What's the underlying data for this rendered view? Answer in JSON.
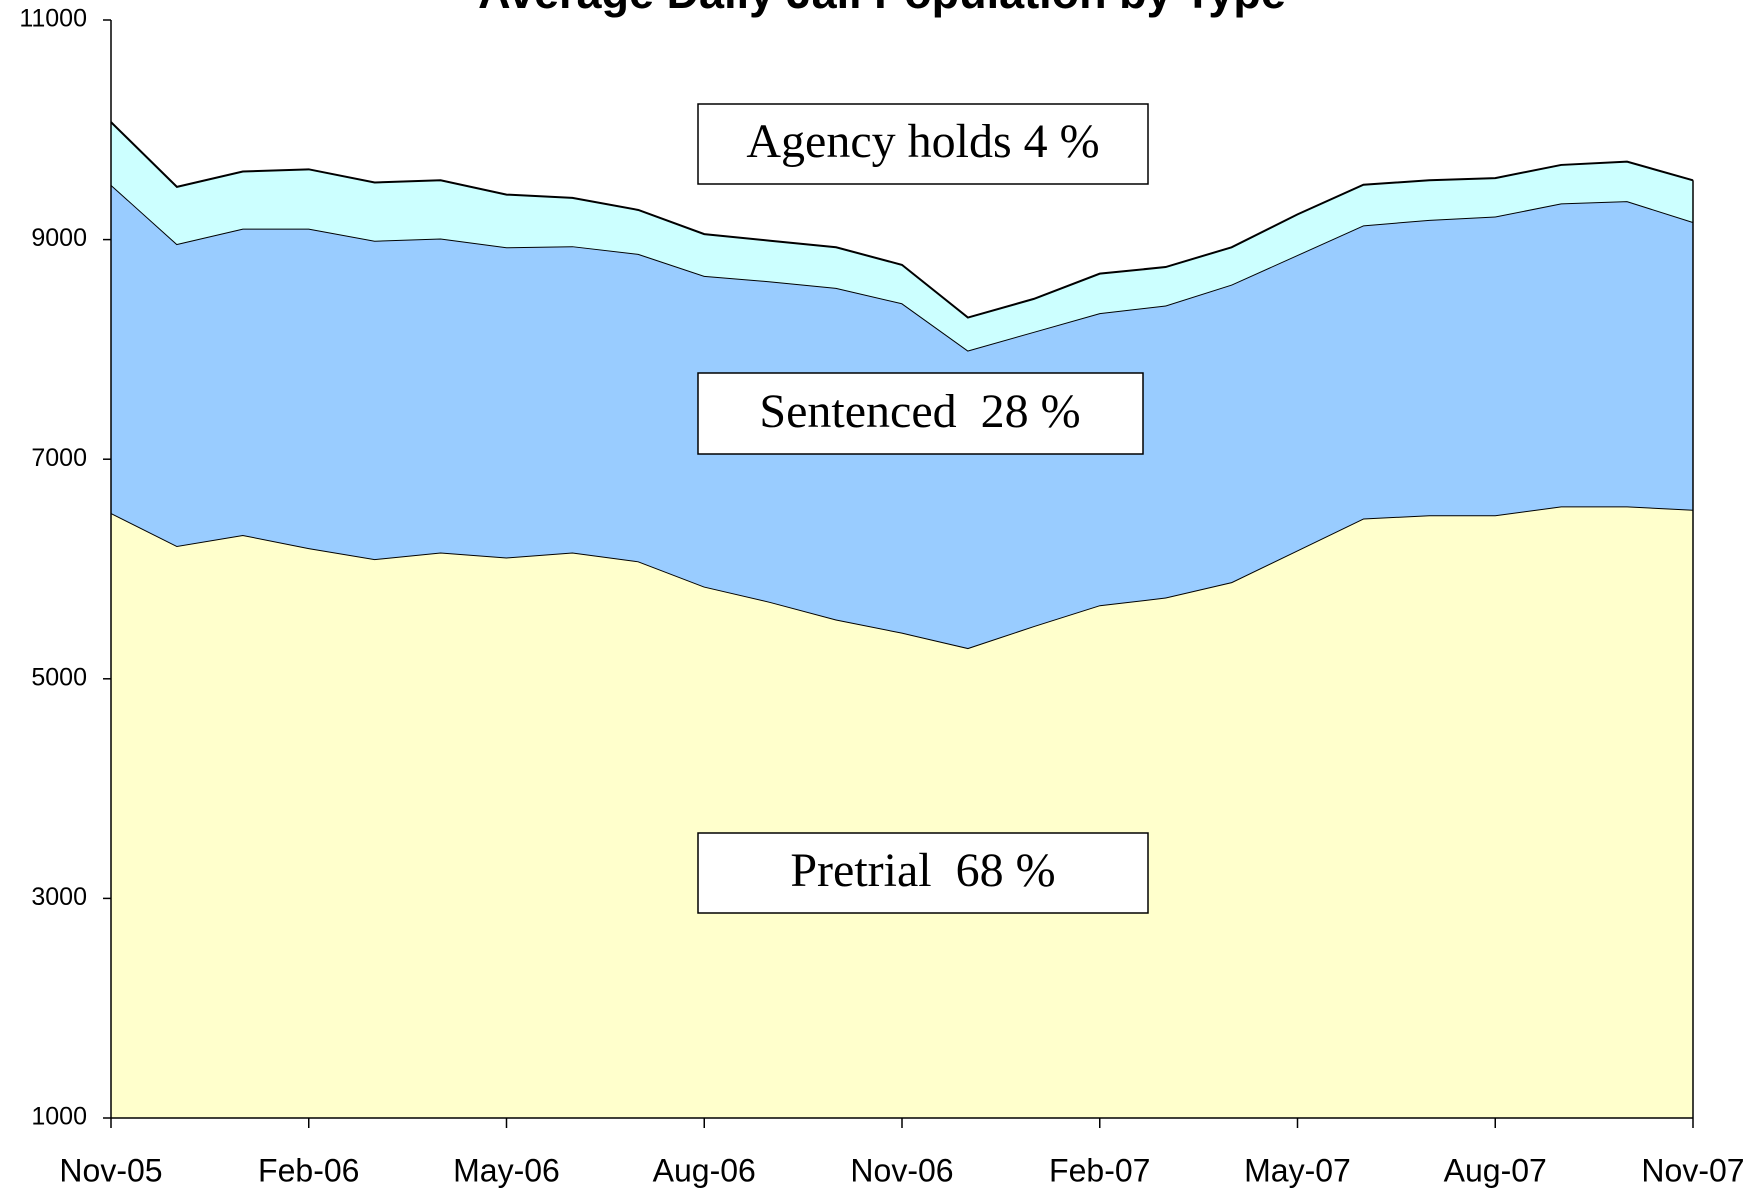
{
  "chart_data": {
    "type": "stacked_area",
    "title": "Average Daily Jail Population by Type",
    "categories": [
      "Nov-05",
      null,
      null,
      "Feb-06",
      null,
      null,
      "May-06",
      null,
      null,
      "Aug-06",
      null,
      null,
      "Nov-06",
      null,
      null,
      "Feb-07",
      null,
      null,
      "May-07",
      null,
      null,
      "Aug-07",
      null,
      null,
      "Nov-07"
    ],
    "series": [
      {
        "color": "#ffffcc",
        "values": [
          6510,
          6210,
          6310,
          6190,
          6090,
          6150,
          6105,
          6150,
          6070,
          5840,
          5700,
          5540,
          5420,
          5280,
          5480,
          5670,
          5740,
          5880,
          6170,
          6460,
          6490,
          6490,
          6570,
          6570,
          6540
        ]
      },
      {
        "color": "#99ccff",
        "values": [
          2990,
          2750,
          2790,
          2910,
          2900,
          2860,
          2825,
          2790,
          2800,
          2830,
          2920,
          3020,
          3000,
          2710,
          2680,
          2660,
          2660,
          2710,
          2690,
          2670,
          2690,
          2720,
          2760,
          2780,
          2620
        ]
      },
      {
        "color": "#ccffff",
        "values": [
          570,
          520,
          520,
          540,
          530,
          530,
          480,
          440,
          400,
          380,
          370,
          370,
          350,
          300,
          300,
          360,
          350,
          340,
          370,
          370,
          360,
          350,
          350,
          360,
          380
        ]
      }
    ],
    "annotations": [
      "Agency holds 4 %",
      "Sentenced  28 %",
      "Pretrial  68 %"
    ],
    "ylim": [
      1000,
      11000
    ],
    "yticks": [
      1000,
      3000,
      5000,
      7000,
      9000,
      11000
    ]
  }
}
